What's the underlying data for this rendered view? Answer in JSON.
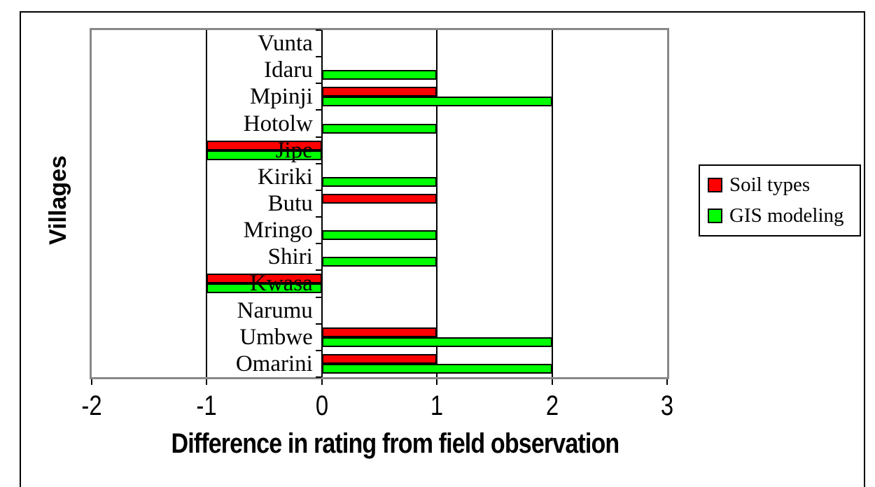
{
  "chart_data": {
    "type": "bar",
    "orientation": "horizontal",
    "title": "",
    "xlabel": "Difference in rating from field observation",
    "ylabel": "Villages",
    "xlim": [
      -2,
      3
    ],
    "xticks": [
      "-2",
      "-1",
      "0",
      "1",
      "2",
      "3"
    ],
    "grid": true,
    "legend_position": "right",
    "categories": [
      "Vunta",
      "Idaru",
      "Mpinji",
      "Hotolw",
      "Jipe",
      "Kiriki",
      "Butu",
      "Mringo",
      "Shiri",
      "Kwasa",
      "Narumu",
      "Umbwe",
      "Omarini"
    ],
    "series": [
      {
        "name": "Soil types",
        "color": "#ff0000",
        "values": [
          0,
          0,
          1,
          0,
          -1,
          0,
          1,
          0,
          0,
          -1,
          0,
          1,
          1
        ]
      },
      {
        "name": "GIS modeling",
        "color": "#00ff00",
        "values": [
          0,
          1,
          2,
          1,
          -1,
          1,
          0,
          1,
          1,
          -1,
          0,
          2,
          2
        ]
      }
    ],
    "colors": {
      "bar_border": "#000000",
      "plot_border": "#888888",
      "gridline": "#000000",
      "outer_border": "#000000",
      "background": "#ffffff"
    }
  }
}
